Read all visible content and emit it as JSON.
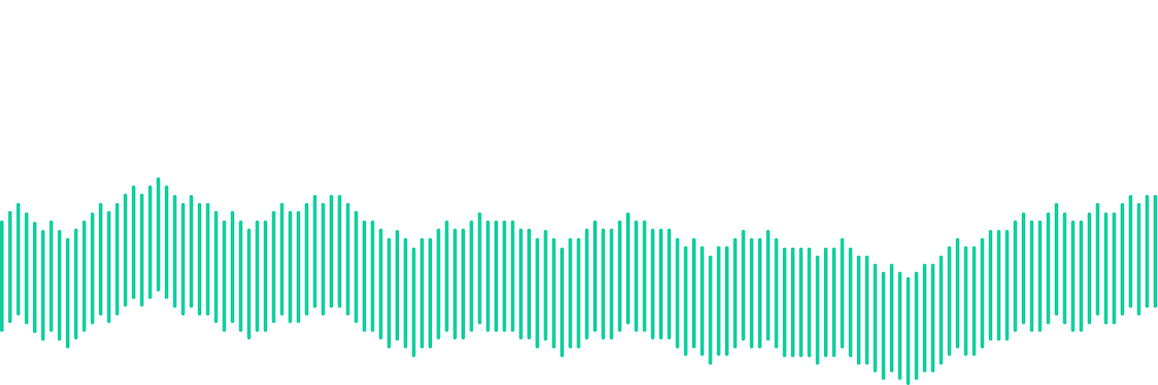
{
  "waveform": {
    "color": "#0ccf9e",
    "note": "",
    "levels": [
      0.42,
      0.49,
      0.55,
      0.48,
      0.41,
      0.35,
      0.42,
      0.35,
      0.29,
      0.36,
      0.42,
      0.48,
      0.55,
      0.49,
      0.55,
      0.62,
      0.68,
      0.62,
      0.68,
      0.74,
      0.68,
      0.61,
      0.55,
      0.61,
      0.55,
      0.55,
      0.49,
      0.42,
      0.49,
      0.42,
      0.36,
      0.42,
      0.42,
      0.49,
      0.55,
      0.49,
      0.49,
      0.55,
      0.61,
      0.55,
      0.61,
      0.61,
      0.55,
      0.49,
      0.42,
      0.42,
      0.36,
      0.29,
      0.35,
      0.29,
      0.22,
      0.29,
      0.29,
      0.36,
      0.42,
      0.36,
      0.36,
      0.42,
      0.48,
      0.42,
      0.42,
      0.42,
      0.42,
      0.36,
      0.36,
      0.29,
      0.35,
      0.29,
      0.22,
      0.29,
      0.29,
      0.36,
      0.42,
      0.36,
      0.36,
      0.42,
      0.48,
      0.42,
      0.42,
      0.36,
      0.36,
      0.36,
      0.29,
      0.23,
      0.29,
      0.23,
      0.16,
      0.23,
      0.23,
      0.29,
      0.35,
      0.29,
      0.29,
      0.35,
      0.29,
      0.22,
      0.22,
      0.22,
      0.22,
      0.16,
      0.22,
      0.22,
      0.29,
      0.22,
      0.16,
      0.16,
      0.1,
      0.04,
      0.1,
      0.04,
      0.0,
      0.04,
      0.1,
      0.1,
      0.16,
      0.23,
      0.29,
      0.23,
      0.23,
      0.29,
      0.35,
      0.35,
      0.35,
      0.42,
      0.48,
      0.42,
      0.42,
      0.48,
      0.55,
      0.48,
      0.42,
      0.42,
      0.48,
      0.55,
      0.48,
      0.48,
      0.55,
      0.61,
      0.55,
      0.61,
      0.61,
      0.55,
      0.61
    ]
  }
}
